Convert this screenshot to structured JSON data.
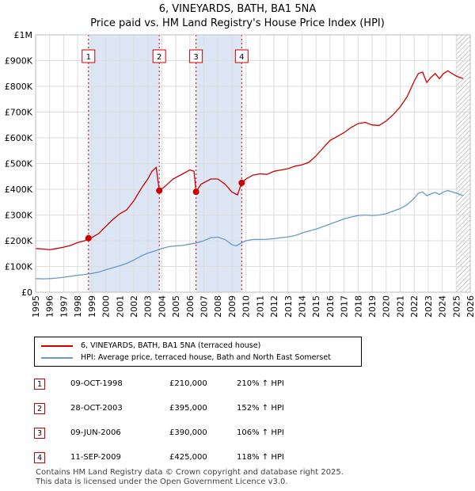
{
  "title": "6, VINEYARDS, BATH, BA1 5NA",
  "subtitle": "Price paid vs. HM Land Registry's House Price Index (HPI)",
  "chart_data": {
    "type": "line",
    "x_range": [
      1995,
      2026
    ],
    "ylim": [
      0,
      1000000
    ],
    "y_ticks": [
      {
        "value": 0,
        "label": "£0"
      },
      {
        "value": 100000,
        "label": "£100K"
      },
      {
        "value": 200000,
        "label": "£200K"
      },
      {
        "value": 300000,
        "label": "£300K"
      },
      {
        "value": 400000,
        "label": "£400K"
      },
      {
        "value": 500000,
        "label": "£500K"
      },
      {
        "value": 600000,
        "label": "£600K"
      },
      {
        "value": 700000,
        "label": "£700K"
      },
      {
        "value": 800000,
        "label": "£800K"
      },
      {
        "value": 900000,
        "label": "£900K"
      },
      {
        "value": 1000000,
        "label": "£1M"
      }
    ],
    "x_ticks": [
      "1995",
      "1996",
      "1997",
      "1998",
      "1999",
      "2000",
      "2001",
      "2002",
      "2003",
      "2004",
      "2005",
      "2006",
      "2007",
      "2008",
      "2009",
      "2010",
      "2011",
      "2012",
      "2013",
      "2014",
      "2015",
      "2016",
      "2017",
      "2018",
      "2019",
      "2020",
      "2021",
      "2022",
      "2023",
      "2024",
      "2025",
      "2026"
    ],
    "shaded_periods": [
      [
        1998.77,
        2003.82
      ],
      [
        2006.44,
        2009.7
      ]
    ],
    "hatch_from": 2025.0,
    "colors": {
      "property": "#cc0000",
      "hpi": "#6699cc",
      "shade": "#dde6f5",
      "grid": "#dddddd"
    },
    "series": [
      {
        "name": "6, VINEYARDS, BATH, BA1 5NA (terraced house)",
        "points": [
          [
            1995.0,
            170000
          ],
          [
            1995.5,
            168000
          ],
          [
            1996.0,
            165000
          ],
          [
            1996.5,
            170000
          ],
          [
            1997.0,
            175000
          ],
          [
            1997.5,
            182000
          ],
          [
            1998.0,
            193000
          ],
          [
            1998.5,
            200000
          ],
          [
            1998.77,
            210000
          ],
          [
            1999.0,
            212000
          ],
          [
            1999.5,
            228000
          ],
          [
            2000.0,
            255000
          ],
          [
            2000.5,
            282000
          ],
          [
            2001.0,
            305000
          ],
          [
            2001.5,
            320000
          ],
          [
            2002.0,
            355000
          ],
          [
            2002.5,
            400000
          ],
          [
            2003.0,
            440000
          ],
          [
            2003.3,
            470000
          ],
          [
            2003.6,
            485000
          ],
          [
            2003.82,
            395000
          ],
          [
            2004.2,
            410000
          ],
          [
            2004.8,
            440000
          ],
          [
            2005.5,
            460000
          ],
          [
            2006.0,
            475000
          ],
          [
            2006.3,
            470000
          ],
          [
            2006.44,
            390000
          ],
          [
            2006.8,
            420000
          ],
          [
            2007.5,
            440000
          ],
          [
            2008.0,
            440000
          ],
          [
            2008.5,
            420000
          ],
          [
            2009.0,
            390000
          ],
          [
            2009.4,
            378000
          ],
          [
            2009.7,
            425000
          ],
          [
            2010.0,
            440000
          ],
          [
            2010.5,
            455000
          ],
          [
            2011.0,
            460000
          ],
          [
            2011.5,
            458000
          ],
          [
            2012.0,
            470000
          ],
          [
            2012.5,
            475000
          ],
          [
            2013.0,
            480000
          ],
          [
            2013.5,
            490000
          ],
          [
            2014.0,
            495000
          ],
          [
            2014.5,
            505000
          ],
          [
            2015.0,
            530000
          ],
          [
            2015.5,
            560000
          ],
          [
            2016.0,
            590000
          ],
          [
            2016.5,
            605000
          ],
          [
            2017.0,
            620000
          ],
          [
            2017.5,
            640000
          ],
          [
            2018.0,
            655000
          ],
          [
            2018.5,
            660000
          ],
          [
            2019.0,
            650000
          ],
          [
            2019.5,
            648000
          ],
          [
            2020.0,
            665000
          ],
          [
            2020.5,
            690000
          ],
          [
            2021.0,
            720000
          ],
          [
            2021.5,
            760000
          ],
          [
            2022.0,
            820000
          ],
          [
            2022.3,
            850000
          ],
          [
            2022.6,
            855000
          ],
          [
            2022.9,
            815000
          ],
          [
            2023.2,
            835000
          ],
          [
            2023.5,
            850000
          ],
          [
            2023.8,
            830000
          ],
          [
            2024.1,
            850000
          ],
          [
            2024.4,
            860000
          ],
          [
            2024.7,
            850000
          ],
          [
            2025.0,
            840000
          ],
          [
            2025.5,
            830000
          ]
        ]
      },
      {
        "name": "HPI: Average price, terraced house, Bath and North East Somerset",
        "points": [
          [
            1995.0,
            53000
          ],
          [
            1995.5,
            52000
          ],
          [
            1996.0,
            53000
          ],
          [
            1996.5,
            55000
          ],
          [
            1997.0,
            58000
          ],
          [
            1997.5,
            62000
          ],
          [
            1998.0,
            66000
          ],
          [
            1998.5,
            69000
          ],
          [
            1999.0,
            73000
          ],
          [
            1999.5,
            78000
          ],
          [
            2000.0,
            87000
          ],
          [
            2000.5,
            95000
          ],
          [
            2001.0,
            103000
          ],
          [
            2001.5,
            112000
          ],
          [
            2002.0,
            125000
          ],
          [
            2002.5,
            140000
          ],
          [
            2003.0,
            152000
          ],
          [
            2003.5,
            160000
          ],
          [
            2004.0,
            170000
          ],
          [
            2004.5,
            177000
          ],
          [
            2005.0,
            180000
          ],
          [
            2005.5,
            182000
          ],
          [
            2006.0,
            187000
          ],
          [
            2006.5,
            192000
          ],
          [
            2007.0,
            200000
          ],
          [
            2007.5,
            212000
          ],
          [
            2008.0,
            214000
          ],
          [
            2008.5,
            205000
          ],
          [
            2009.0,
            185000
          ],
          [
            2009.3,
            180000
          ],
          [
            2009.7,
            192000
          ],
          [
            2010.0,
            200000
          ],
          [
            2010.5,
            205000
          ],
          [
            2011.0,
            205000
          ],
          [
            2011.5,
            206000
          ],
          [
            2012.0,
            208000
          ],
          [
            2012.5,
            212000
          ],
          [
            2013.0,
            215000
          ],
          [
            2013.5,
            220000
          ],
          [
            2014.0,
            230000
          ],
          [
            2014.5,
            238000
          ],
          [
            2015.0,
            245000
          ],
          [
            2015.5,
            255000
          ],
          [
            2016.0,
            265000
          ],
          [
            2016.5,
            275000
          ],
          [
            2017.0,
            285000
          ],
          [
            2017.5,
            292000
          ],
          [
            2018.0,
            298000
          ],
          [
            2018.5,
            300000
          ],
          [
            2019.0,
            298000
          ],
          [
            2019.5,
            300000
          ],
          [
            2020.0,
            305000
          ],
          [
            2020.5,
            315000
          ],
          [
            2021.0,
            325000
          ],
          [
            2021.5,
            340000
          ],
          [
            2022.0,
            365000
          ],
          [
            2022.3,
            385000
          ],
          [
            2022.6,
            390000
          ],
          [
            2022.9,
            375000
          ],
          [
            2023.2,
            382000
          ],
          [
            2023.5,
            388000
          ],
          [
            2023.8,
            380000
          ],
          [
            2024.1,
            390000
          ],
          [
            2024.4,
            395000
          ],
          [
            2024.7,
            390000
          ],
          [
            2025.0,
            385000
          ],
          [
            2025.5,
            375000
          ]
        ]
      }
    ],
    "markers": [
      {
        "label": "1",
        "x": 1998.77,
        "y": 210000
      },
      {
        "label": "2",
        "x": 2003.82,
        "y": 395000
      },
      {
        "label": "3",
        "x": 2006.44,
        "y": 390000
      },
      {
        "label": "4",
        "x": 2009.7,
        "y": 425000
      }
    ]
  },
  "legend": {
    "property_label": "6, VINEYARDS, BATH, BA1 5NA (terraced house)",
    "hpi_label": "HPI: Average price, terraced house, Bath and North East Somerset"
  },
  "transactions": [
    {
      "num": "1",
      "date": "09-OCT-1998",
      "price": "£210,000",
      "hpi": "210% ↑ HPI"
    },
    {
      "num": "2",
      "date": "28-OCT-2003",
      "price": "£395,000",
      "hpi": "152% ↑ HPI"
    },
    {
      "num": "3",
      "date": "09-JUN-2006",
      "price": "£390,000",
      "hpi": "106% ↑ HPI"
    },
    {
      "num": "4",
      "date": "11-SEP-2009",
      "price": "£425,000",
      "hpi": "118% ↑ HPI"
    }
  ],
  "footer": {
    "line1": "Contains HM Land Registry data © Crown copyright and database right 2025.",
    "line2": "This data is licensed under the Open Government Licence v3.0."
  }
}
